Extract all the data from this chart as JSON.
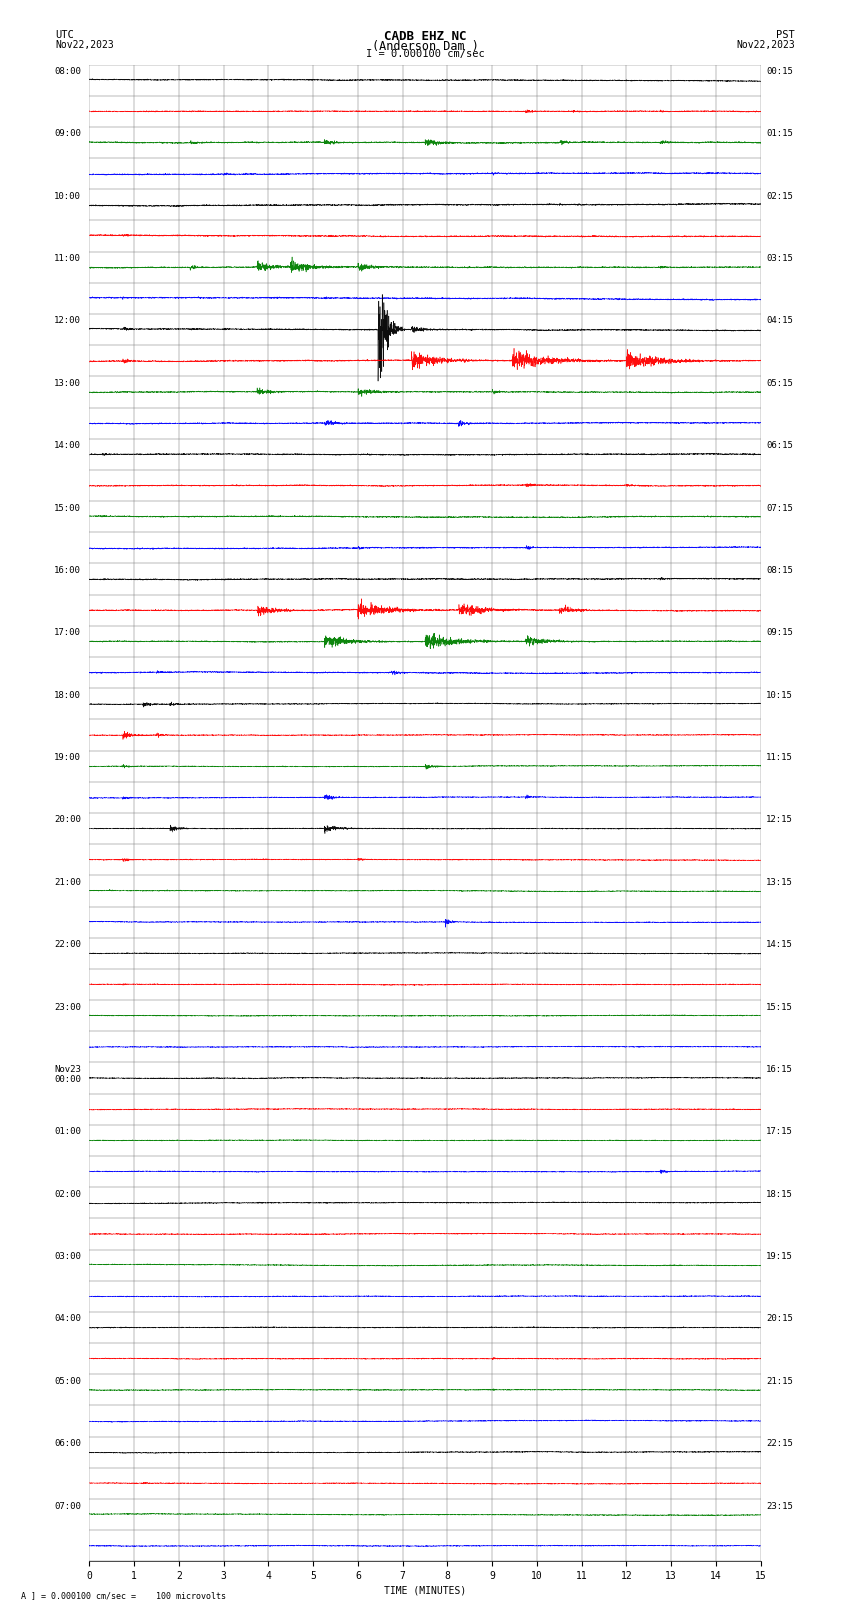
{
  "title_line1": "CADB EHZ NC",
  "title_line2": "(Anderson Dam )",
  "scale_text": "I = 0.000100 cm/sec",
  "bottom_text": "A ] = 0.000100 cm/sec =    100 microvolts",
  "xlabel": "TIME (MINUTES)",
  "num_traces": 48,
  "left_times_utc": [
    "08:00",
    "09:00",
    "10:00",
    "11:00",
    "12:00",
    "13:00",
    "14:00",
    "15:00",
    "16:00",
    "17:00",
    "18:00",
    "19:00",
    "20:00",
    "21:00",
    "22:00",
    "23:00",
    "Nov23\n00:00",
    "01:00",
    "02:00",
    "03:00",
    "04:00",
    "05:00",
    "06:00",
    "07:00"
  ],
  "right_times_pst": [
    "00:15",
    "01:15",
    "02:15",
    "03:15",
    "04:15",
    "05:15",
    "06:15",
    "07:15",
    "08:15",
    "09:15",
    "10:15",
    "11:15",
    "12:15",
    "13:15",
    "14:15",
    "15:15",
    "16:15",
    "17:15",
    "18:15",
    "19:15",
    "20:15",
    "21:15",
    "22:15",
    "23:15"
  ],
  "trace_colors": [
    "red",
    "blue",
    "green",
    "black",
    "red",
    "blue",
    "green",
    "black",
    "red",
    "blue",
    "green",
    "black",
    "red",
    "blue",
    "green",
    "black",
    "red",
    "blue",
    "green",
    "black",
    "red",
    "blue",
    "green",
    "black",
    "red",
    "blue",
    "green",
    "black",
    "red",
    "blue",
    "green",
    "black",
    "red",
    "blue",
    "green",
    "black",
    "red",
    "blue",
    "green",
    "black",
    "red",
    "blue",
    "green",
    "black",
    "red",
    "blue",
    "green",
    "black"
  ],
  "background_color": "#ffffff",
  "grid_color": "#777777"
}
